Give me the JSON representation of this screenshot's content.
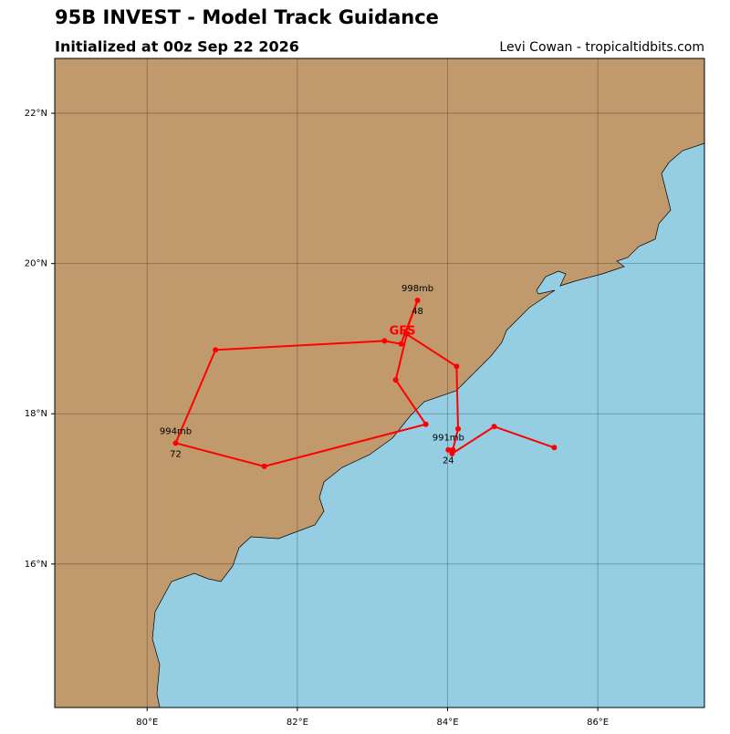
{
  "chart_data": {
    "type": "track",
    "title": "95B INVEST - Model Track Guidance",
    "subtitle": "Initialized at 00z Sep 22 2026",
    "credit": "Levi Cowan - tropicaltidbits.com",
    "xlim": [
      78.77,
      87.42
    ],
    "ylim": [
      14.09,
      22.73
    ],
    "xticks": [
      {
        "value": 80,
        "label": "80°E"
      },
      {
        "value": 82,
        "label": "82°E"
      },
      {
        "value": 84,
        "label": "84°E"
      },
      {
        "value": 86,
        "label": "86°E"
      }
    ],
    "yticks": [
      {
        "value": 16,
        "label": "16°N"
      },
      {
        "value": 18,
        "label": "18°N"
      },
      {
        "value": 20,
        "label": "20°N"
      },
      {
        "value": 22,
        "label": "22°N"
      }
    ],
    "grid": true,
    "series": [
      {
        "name": "GFS",
        "color": "#ff0000",
        "lon": [
          85.42,
          84.62,
          84.06,
          84.01,
          84.07,
          84.14,
          84.12,
          83.44,
          83.6,
          83.38,
          83.16,
          80.91,
          80.38,
          81.56,
          83.71,
          83.31,
          83.46
        ],
        "lat": [
          17.55,
          17.83,
          17.47,
          17.52,
          17.52,
          17.8,
          18.63,
          19.07,
          19.51,
          18.93,
          18.97,
          18.85,
          17.61,
          17.3,
          17.86,
          18.45,
          19.07
        ]
      }
    ],
    "annotations": [
      {
        "text": "991mb",
        "hour": "24",
        "lon": 84.01,
        "lat": 17.52
      },
      {
        "text": "998mb",
        "hour": "48",
        "lon": 83.6,
        "lat": 19.51
      },
      {
        "text": "994mb",
        "hour": "72",
        "lon": 80.38,
        "lat": 17.61
      }
    ]
  }
}
